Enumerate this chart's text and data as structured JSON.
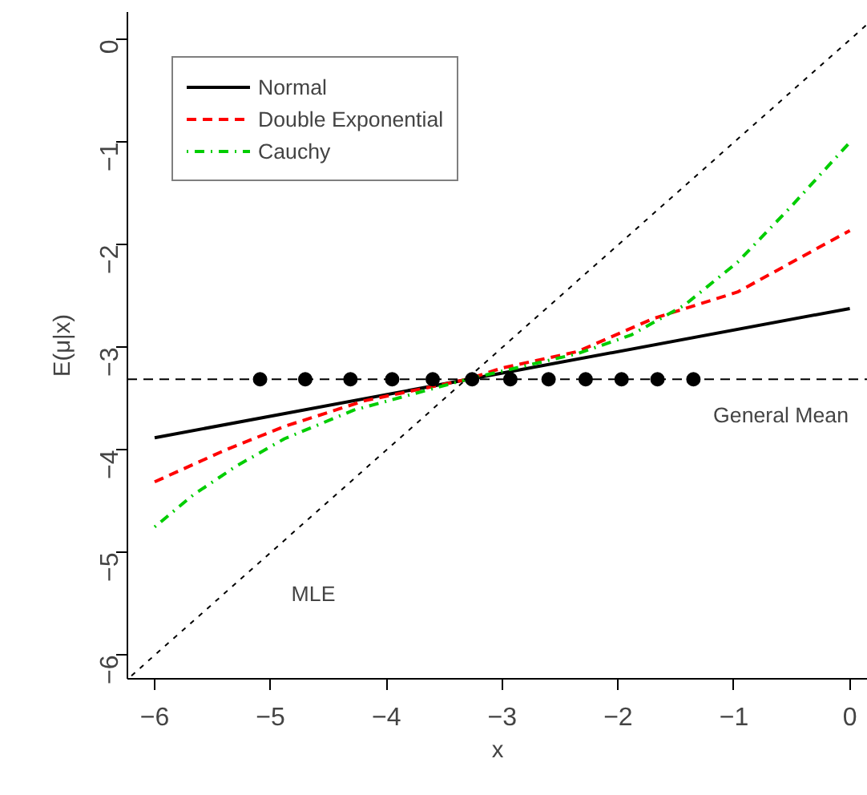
{
  "chart_data": {
    "type": "line",
    "xlabel": "x",
    "ylabel": "E(μ|x)",
    "xlim": [
      -6.235,
      0.155
    ],
    "ylim": [
      -6.23,
      0.27
    ],
    "xticks": [
      -6,
      -5,
      -4,
      -3,
      -2,
      -1,
      0
    ],
    "yticks": [
      -6,
      -5,
      -4,
      -3,
      -2,
      -1,
      0
    ],
    "grid": false,
    "legend": "top left",
    "series": [
      {
        "name": "Normal",
        "color": "#000000",
        "line_style": "solid",
        "x": [
          -6,
          0
        ],
        "values": [
          -3.88,
          -2.62
        ]
      },
      {
        "name": "Double Exponential",
        "color": "#ff0000",
        "line_style": "dashed",
        "x": [
          -6,
          -5.39,
          -4.88,
          -4.19,
          -3.3,
          -3.0,
          -2.35,
          -1.7,
          -0.97,
          0
        ],
        "values": [
          -4.31,
          -4.0,
          -3.77,
          -3.52,
          -3.31,
          -3.2,
          -3.04,
          -2.72,
          -2.46,
          -1.86
        ]
      },
      {
        "name": "Cauchy",
        "color": "#00cd00",
        "line_style": "dashdot",
        "x": [
          -6,
          -5.67,
          -5.3,
          -4.88,
          -4.28,
          -3.3,
          -2.35,
          -1.89,
          -1.43,
          -0.97,
          -0.51,
          0
        ],
        "values": [
          -4.75,
          -4.44,
          -4.16,
          -3.89,
          -3.61,
          -3.31,
          -3.06,
          -2.88,
          -2.59,
          -2.17,
          -1.63,
          -1.0
        ]
      },
      {
        "color": "#000000",
        "line_style": "dotted",
        "x": [
          -6.2,
          0.15
        ],
        "values": [
          -6.2,
          0.15
        ]
      },
      {
        "type": "scatter",
        "marker": "circle",
        "color": "#000000",
        "x": [
          -5.09,
          -4.7,
          -4.31,
          -3.95,
          -3.6,
          -3.26,
          -2.93,
          -2.6,
          -2.28,
          -1.97,
          -1.66,
          -1.35
        ],
        "values": [
          -3.31,
          -3.31,
          -3.31,
          -3.31,
          -3.31,
          -3.31,
          -3.31,
          -3.31,
          -3.31,
          -3.31,
          -3.31,
          -3.31
        ]
      }
    ],
    "ref_lines": [
      {
        "axis": "y",
        "value": -3.31,
        "label": "General Mean",
        "color": "#000000",
        "line_style": "dashed"
      }
    ],
    "annotations": [
      "MLE"
    ]
  }
}
